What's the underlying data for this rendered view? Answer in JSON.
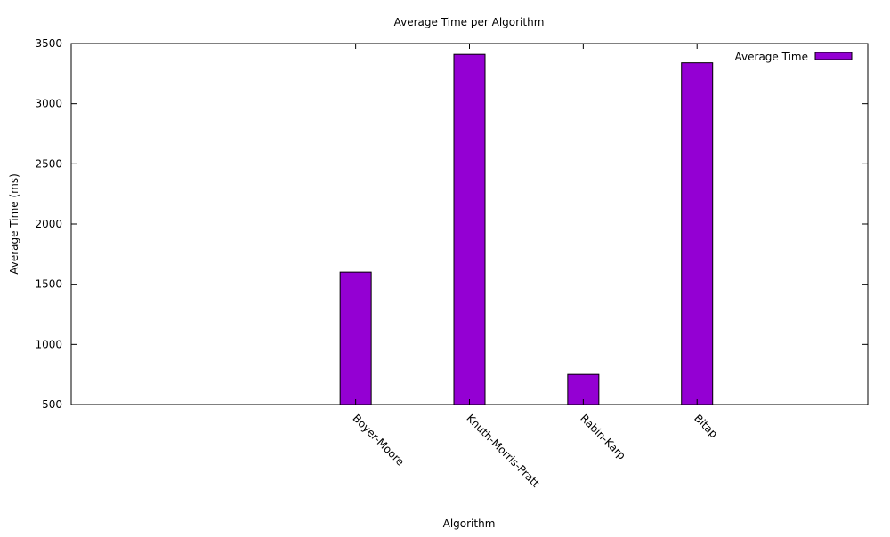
{
  "chart_data": {
    "type": "bar",
    "title": "Average Time per Algorithm",
    "xlabel": "Algorithm",
    "ylabel": "Average Time (ms)",
    "categories": [
      "",
      "",
      "Boyer-Moore",
      "Knuth-Morris-Pratt",
      "Rabin-Karp",
      "Bitap",
      ""
    ],
    "series": [
      {
        "name": "Average Time",
        "values": [
          null,
          null,
          1600,
          3410,
          750,
          3340,
          null
        ],
        "color": "#9400d3"
      }
    ],
    "ylim": [
      500,
      3500
    ],
    "yticks": [
      500,
      1000,
      1500,
      2000,
      2500,
      3000,
      3500
    ],
    "grid": false,
    "legend_position": "top-right"
  }
}
